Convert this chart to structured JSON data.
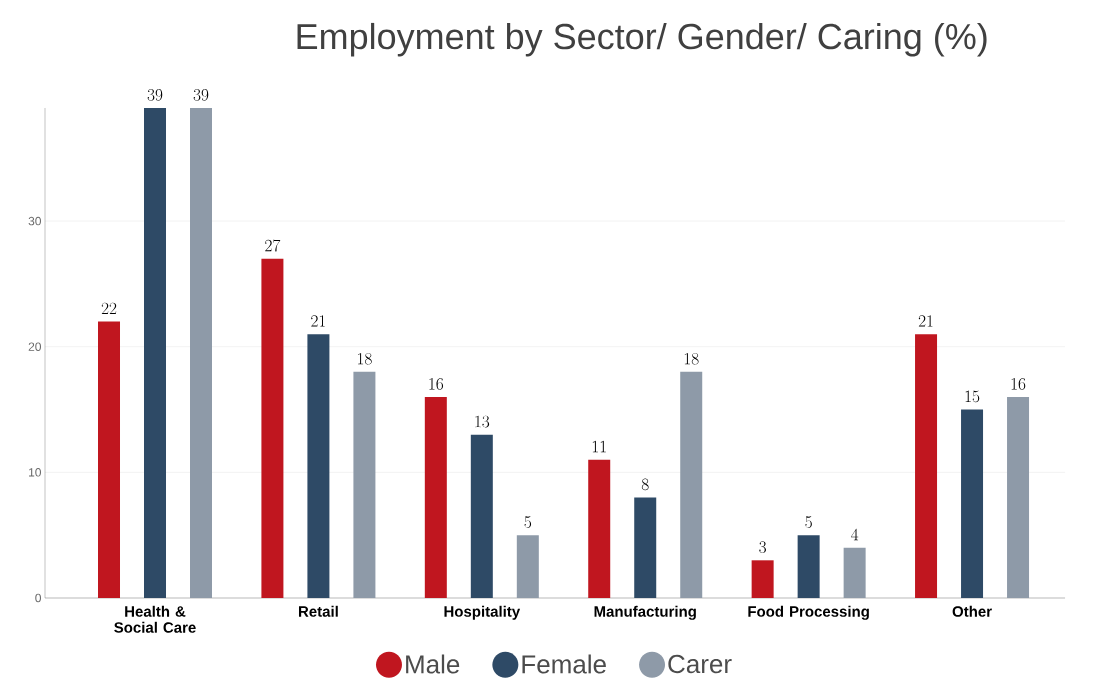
{
  "chart_data": {
    "type": "bar",
    "title": "Employment by Sector/ Gender/ Caring (%)",
    "categories": [
      "Health & Social Care",
      "Retail",
      "Hospitality",
      "Manufacturing",
      "Food Processing",
      "Other"
    ],
    "series": [
      {
        "name": "Male",
        "color": "#c0161f",
        "values": [
          22,
          27,
          16,
          11,
          3,
          21
        ]
      },
      {
        "name": "Female",
        "color": "#2e4a66",
        "values": [
          39,
          21,
          13,
          8,
          5,
          15
        ]
      },
      {
        "name": "Carer",
        "color": "#8e9aa8",
        "values": [
          39,
          18,
          5,
          18,
          4,
          16
        ]
      }
    ],
    "ylim": [
      0,
      39
    ],
    "yticks": [
      0,
      10,
      20,
      30
    ],
    "grid": "y",
    "legend": "bottom",
    "data_labels": true
  }
}
